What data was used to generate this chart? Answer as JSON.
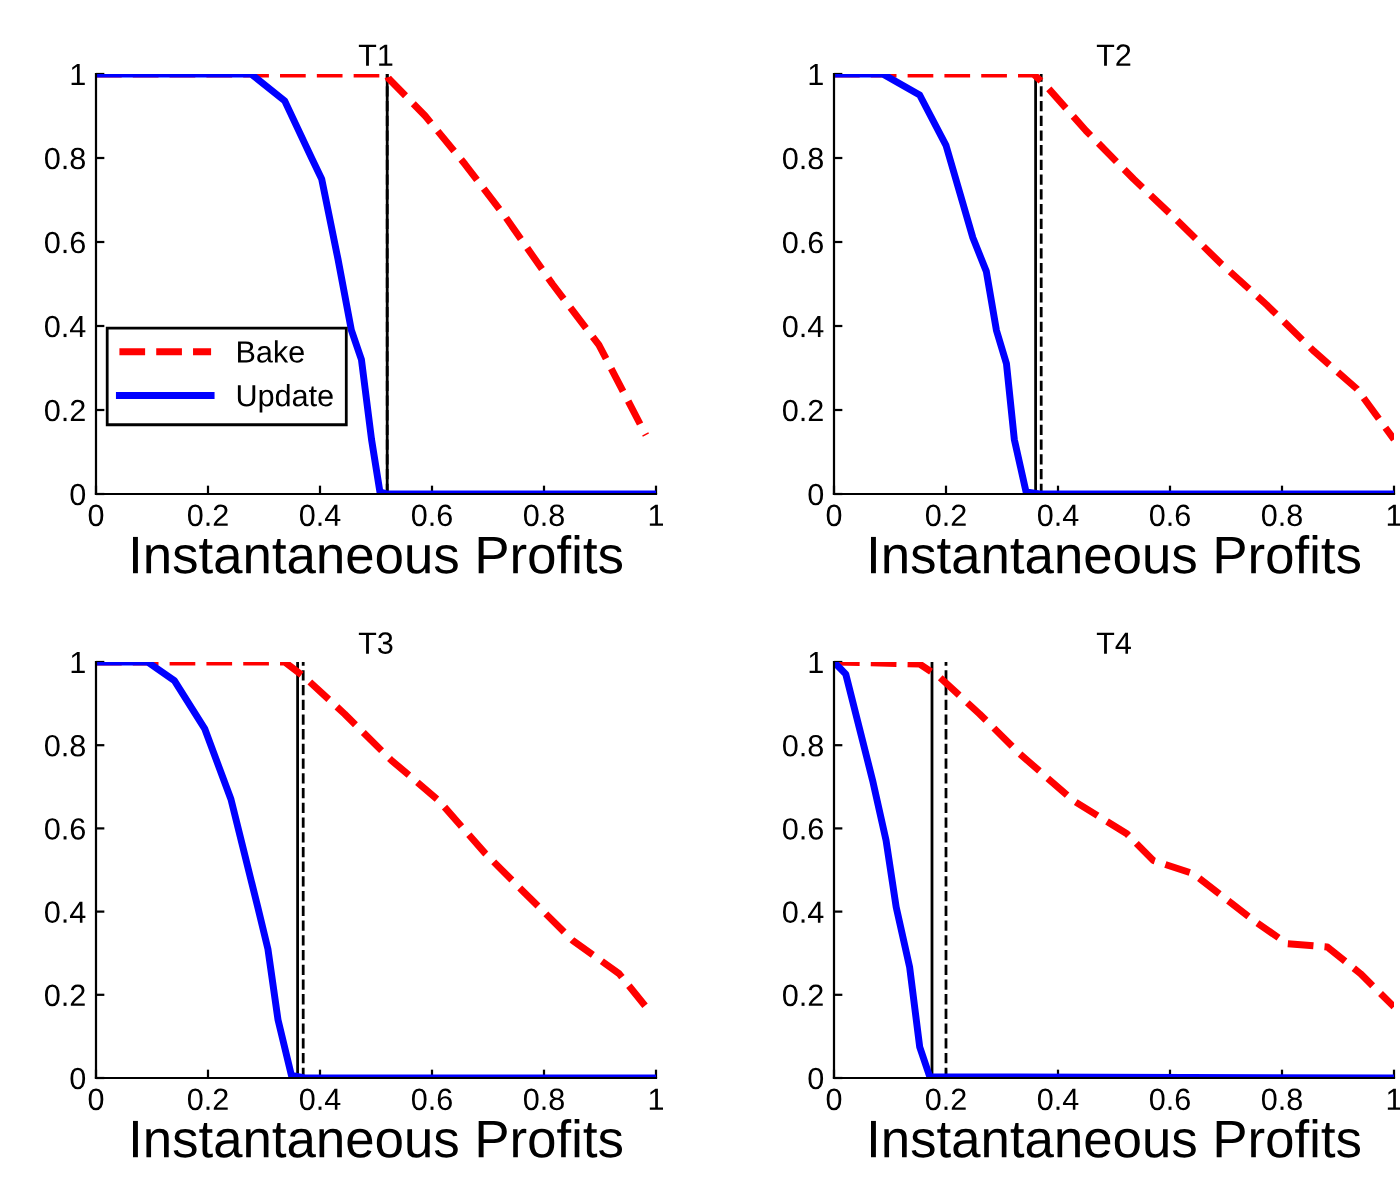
{
  "chart_data": [
    {
      "type": "line",
      "title": "T1",
      "xlabel": "Instantaneous Profits",
      "xlim": [
        0,
        1
      ],
      "ylim": [
        0,
        1
      ],
      "xticks": [
        0,
        0.2,
        0.4,
        0.6,
        0.8,
        1
      ],
      "yticks": [
        0,
        0.2,
        0.4,
        0.6,
        0.8,
        1
      ],
      "grid": false,
      "legend": "left",
      "series": [
        {
          "name": "Bake",
          "color": "#ff0000",
          "line_style": "dashed",
          "x": [
            0,
            0.52,
            0.522,
            0.588,
            0.659,
            0.731,
            0.815,
            0.898,
            0.982
          ],
          "values": [
            1,
            1,
            0.99,
            0.9,
            0.785,
            0.66,
            0.5,
            0.355,
            0.14
          ]
        },
        {
          "name": "Update",
          "color": "#0000ff",
          "line_style": "solid",
          "x": [
            0,
            0.277,
            0.337,
            0.385,
            0.403,
            0.432,
            0.456,
            0.474,
            0.492,
            0.507,
            0.52,
            1
          ],
          "values": [
            1,
            1,
            0.936,
            0.8,
            0.75,
            0.56,
            0.39,
            0.32,
            0.13,
            0.005,
            0,
            0
          ]
        }
      ],
      "ref_lines": [
        {
          "axis": "x",
          "value": 0.52,
          "color": "#000000",
          "line_style": "solid"
        },
        {
          "axis": "x",
          "value": 0.52,
          "color": "#000000",
          "line_style": "dashed"
        }
      ]
    },
    {
      "type": "line",
      "title": "T2",
      "xlabel": "Instantaneous Profits",
      "xlim": [
        0,
        1
      ],
      "ylim": [
        0,
        1
      ],
      "xticks": [
        0,
        0.2,
        0.4,
        0.6,
        0.8,
        1
      ],
      "yticks": [
        0,
        0.2,
        0.4,
        0.6,
        0.8,
        1
      ],
      "grid": false,
      "series": [
        {
          "color": "#ff0000",
          "line_style": "dashed",
          "x": [
            0,
            0.356,
            0.38,
            0.45,
            0.535,
            0.606,
            0.69,
            0.773,
            0.857,
            0.934,
            1
          ],
          "values": [
            1,
            1,
            0.97,
            0.865,
            0.75,
            0.66,
            0.55,
            0.45,
            0.34,
            0.25,
            0.13
          ]
        },
        {
          "color": "#0000ff",
          "line_style": "solid",
          "x": [
            0,
            0.087,
            0.153,
            0.2,
            0.248,
            0.272,
            0.29,
            0.308,
            0.322,
            0.343,
            0.367,
            1
          ],
          "values": [
            1,
            1,
            0.95,
            0.83,
            0.61,
            0.53,
            0.39,
            0.31,
            0.13,
            0.005,
            0,
            0
          ]
        }
      ],
      "ref_lines": [
        {
          "axis": "x",
          "value": 0.36,
          "color": "#000000",
          "line_style": "solid"
        },
        {
          "axis": "x",
          "value": 0.37,
          "color": "#000000",
          "line_style": "dashed"
        }
      ]
    },
    {
      "type": "line",
      "title": "T3",
      "xlabel": "Instantaneous Profits",
      "xlim": [
        0,
        1
      ],
      "ylim": [
        0,
        1
      ],
      "xticks": [
        0,
        0.2,
        0.4,
        0.6,
        0.8,
        1
      ],
      "yticks": [
        0,
        0.2,
        0.4,
        0.6,
        0.8,
        1
      ],
      "grid": false,
      "series": [
        {
          "color": "#ff0000",
          "line_style": "dashed",
          "x": [
            0,
            0.337,
            0.373,
            0.444,
            0.528,
            0.612,
            0.695,
            0.767,
            0.851,
            0.934,
            0.982
          ],
          "values": [
            1,
            1,
            0.963,
            0.875,
            0.763,
            0.667,
            0.54,
            0.443,
            0.331,
            0.251,
            0.171
          ]
        },
        {
          "color": "#0000ff",
          "line_style": "solid",
          "x": [
            0,
            0.092,
            0.14,
            0.194,
            0.241,
            0.265,
            0.289,
            0.307,
            0.325,
            0.349,
            0.373,
            1
          ],
          "values": [
            1,
            1,
            0.955,
            0.84,
            0.67,
            0.54,
            0.41,
            0.31,
            0.14,
            0.006,
            0,
            0
          ]
        }
      ],
      "ref_lines": [
        {
          "axis": "x",
          "value": 0.36,
          "color": "#000000",
          "line_style": "solid"
        },
        {
          "axis": "x",
          "value": 0.37,
          "color": "#000000",
          "line_style": "dashed"
        }
      ]
    },
    {
      "type": "line",
      "title": "T4",
      "xlabel": "Instantaneous Profits",
      "xlim": [
        0,
        1
      ],
      "ylim": [
        0,
        1
      ],
      "xticks": [
        0,
        0.2,
        0.4,
        0.6,
        0.8,
        1
      ],
      "yticks": [
        0,
        0.2,
        0.4,
        0.6,
        0.8,
        1
      ],
      "grid": false,
      "series": [
        {
          "color": "#ff0000",
          "line_style": "dashed",
          "x": [
            0,
            0.153,
            0.189,
            0.26,
            0.332,
            0.427,
            0.523,
            0.57,
            0.642,
            0.749,
            0.809,
            0.881,
            0.94,
            1
          ],
          "values": [
            1,
            0.995,
            0.963,
            0.875,
            0.779,
            0.667,
            0.587,
            0.523,
            0.491,
            0.379,
            0.323,
            0.315,
            0.251,
            0.171
          ]
        },
        {
          "color": "#0000ff",
          "line_style": "solid",
          "x": [
            0,
            0.021,
            0.045,
            0.069,
            0.093,
            0.111,
            0.135,
            0.153,
            0.171,
            1
          ],
          "values": [
            1,
            0.971,
            0.843,
            0.715,
            0.571,
            0.411,
            0.267,
            0.075,
            0.003,
            0
          ]
        }
      ],
      "ref_lines": [
        {
          "axis": "x",
          "value": 0.175,
          "color": "#000000",
          "line_style": "solid"
        },
        {
          "axis": "x",
          "value": 0.2,
          "color": "#000000",
          "line_style": "dashed"
        }
      ]
    }
  ]
}
